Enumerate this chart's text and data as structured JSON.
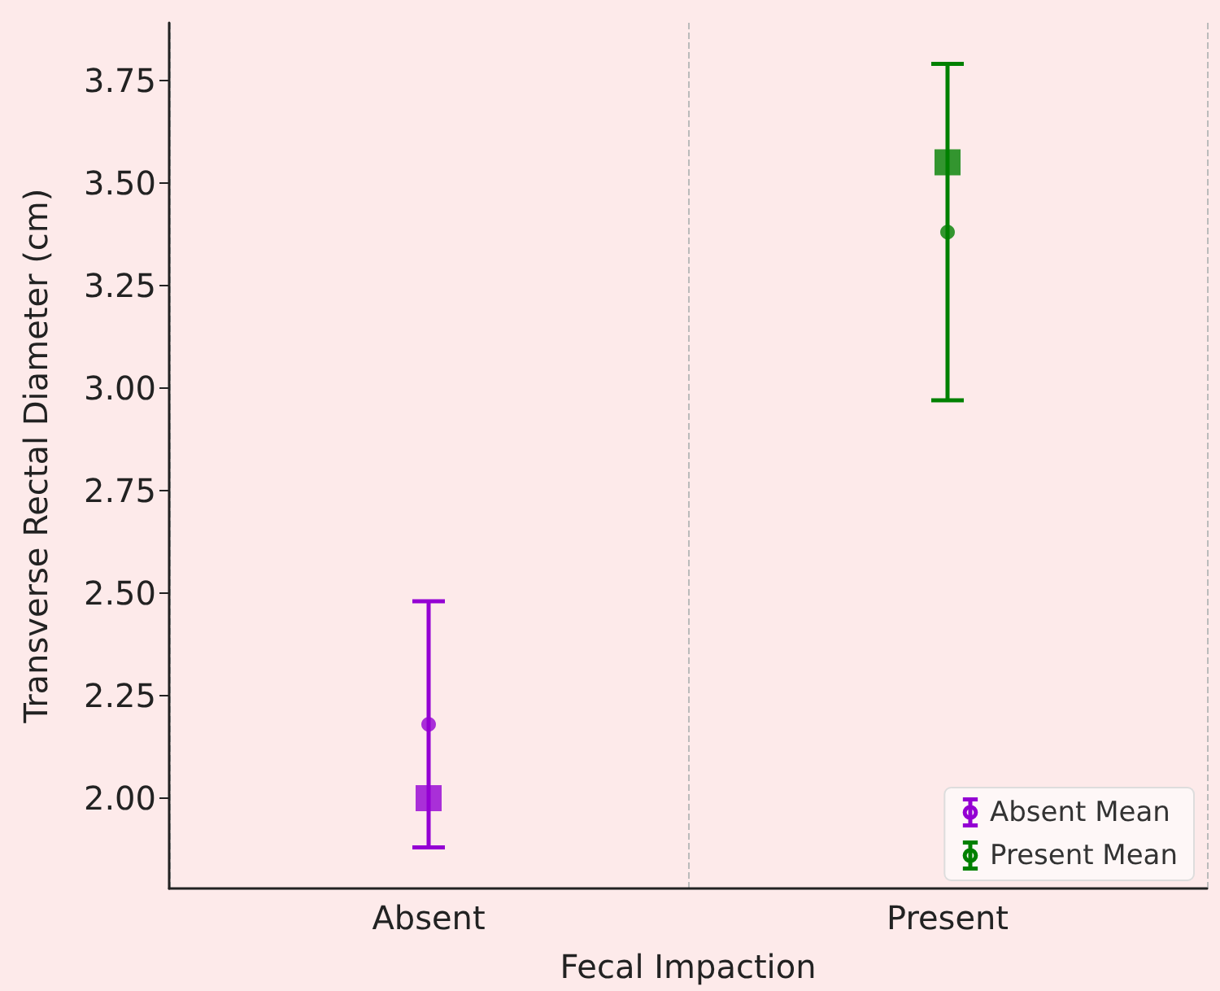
{
  "chart_data": {
    "type": "scatter",
    "xlabel": "Fecal Impaction",
    "ylabel": "Transverse Rectal Diameter (cm)",
    "categories": [
      "Absent",
      "Present"
    ],
    "series": [
      {
        "name": "Absent Mean",
        "color": "#9400d3",
        "x": [
          "Absent"
        ],
        "values": [
          2.18
        ],
        "errors": [
          [
            1.88,
            2.48
          ]
        ],
        "marker": "circle"
      },
      {
        "name": "Present Mean",
        "color": "#008000",
        "x": [
          "Present"
        ],
        "values": [
          3.38
        ],
        "errors": [
          [
            2.97,
            3.79
          ]
        ],
        "marker": "circle"
      },
      {
        "colors": [
          "#9400d3",
          "#008000"
        ],
        "x": [
          "Absent",
          "Present"
        ],
        "values": [
          2.0,
          3.55
        ],
        "marker": "square"
      }
    ],
    "ylim": [
      1.78,
      3.89
    ],
    "yticks": [
      {
        "value": 2,
        "label": "2.00"
      },
      {
        "value": 2.25,
        "label": "2.25"
      },
      {
        "value": 2.5,
        "label": "2.50"
      },
      {
        "value": 2.75,
        "label": "2.75"
      },
      {
        "value": 3,
        "label": "3.00"
      },
      {
        "value": 3.25,
        "label": "3.25"
      },
      {
        "value": 3.5,
        "label": "3.50"
      },
      {
        "value": 3.75,
        "label": "3.75"
      }
    ],
    "grid": "x",
    "legend": "bottom right"
  }
}
